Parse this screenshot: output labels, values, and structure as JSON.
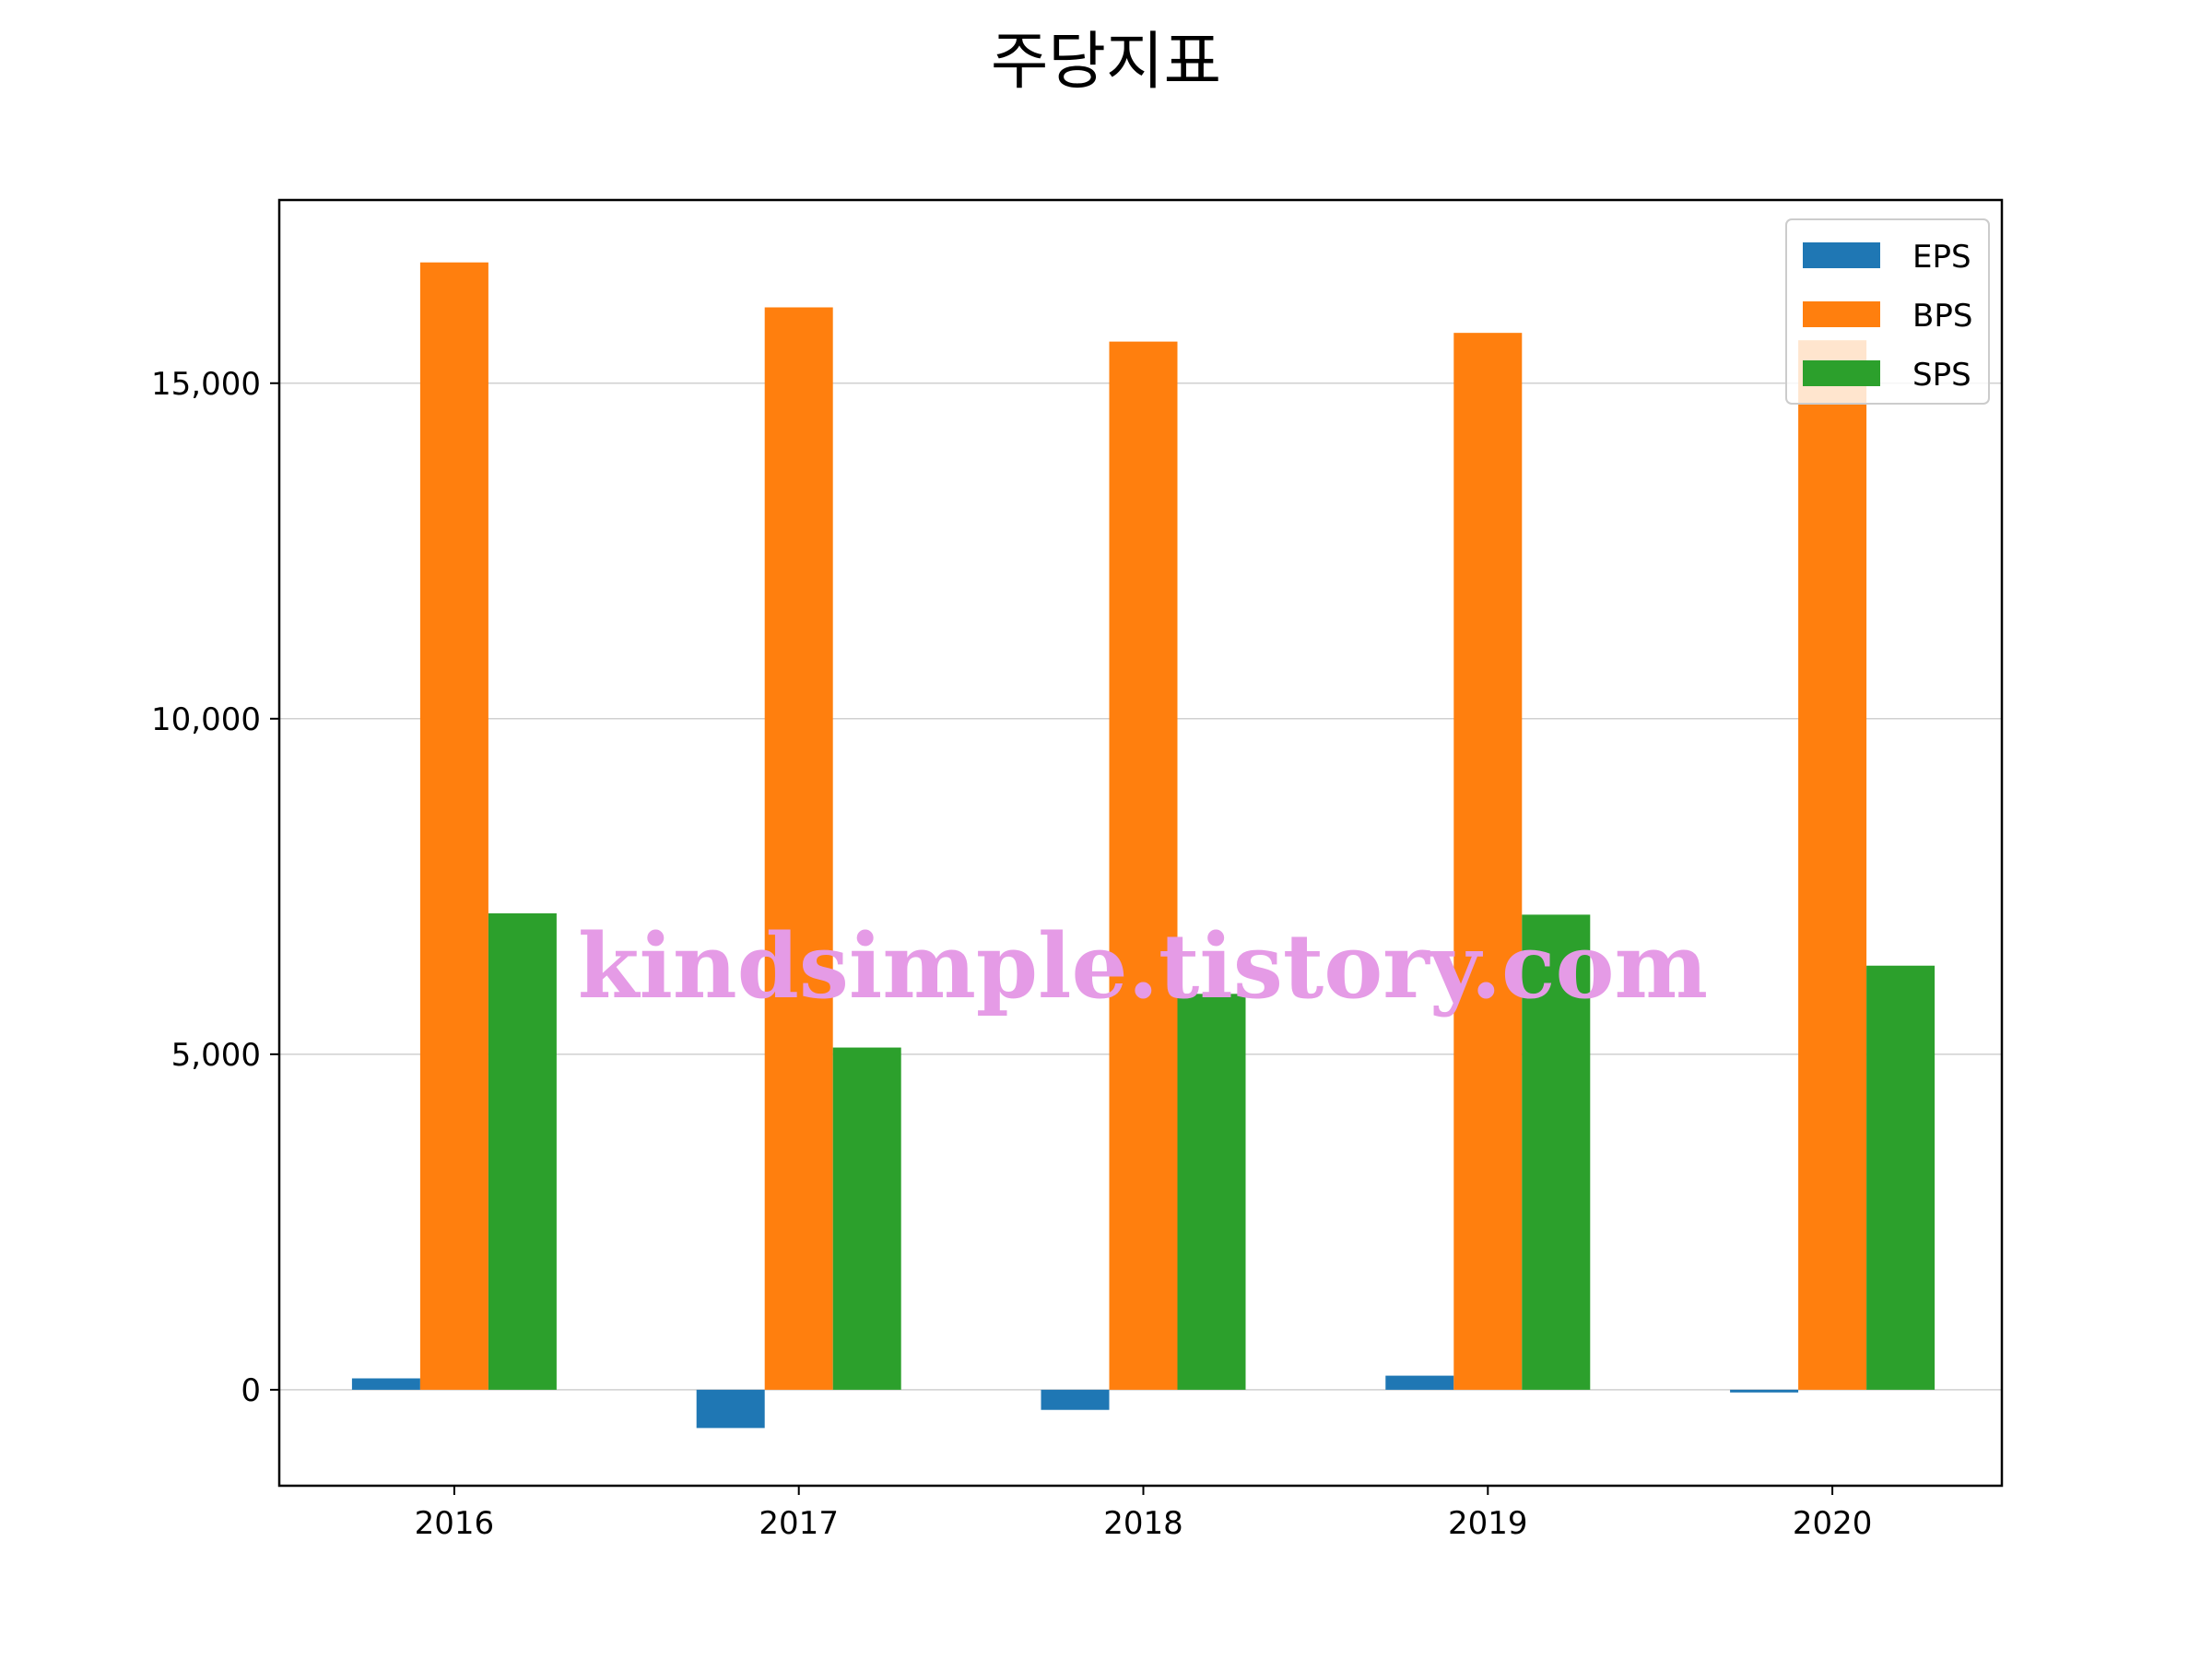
{
  "chart_data": {
    "type": "bar",
    "title": "주당지표",
    "categories": [
      "2016",
      "2017",
      "2018",
      "2019",
      "2020"
    ],
    "series": [
      {
        "name": "EPS",
        "values": [
          170,
          -570,
          -300,
          210,
          -40
        ]
      },
      {
        "name": "BPS",
        "values": [
          16800,
          16130,
          15620,
          15750,
          15640
        ]
      },
      {
        "name": "SPS",
        "values": [
          7100,
          5100,
          5900,
          7080,
          6320
        ]
      }
    ],
    "ylim": [
      -1430,
      17730
    ],
    "yticks": [
      0,
      5000,
      10000,
      15000
    ],
    "ytick_labels": [
      "0",
      "5,000",
      "10,000",
      "15,000"
    ],
    "grid": "horizontal",
    "legend_position": "top-right",
    "colors": {
      "EPS": "#1f77b4",
      "BPS": "#ff7f0e",
      "SPS": "#2ca02c"
    }
  },
  "watermark": "kindsimple.tistory.com",
  "watermark_color": "#e59be6"
}
